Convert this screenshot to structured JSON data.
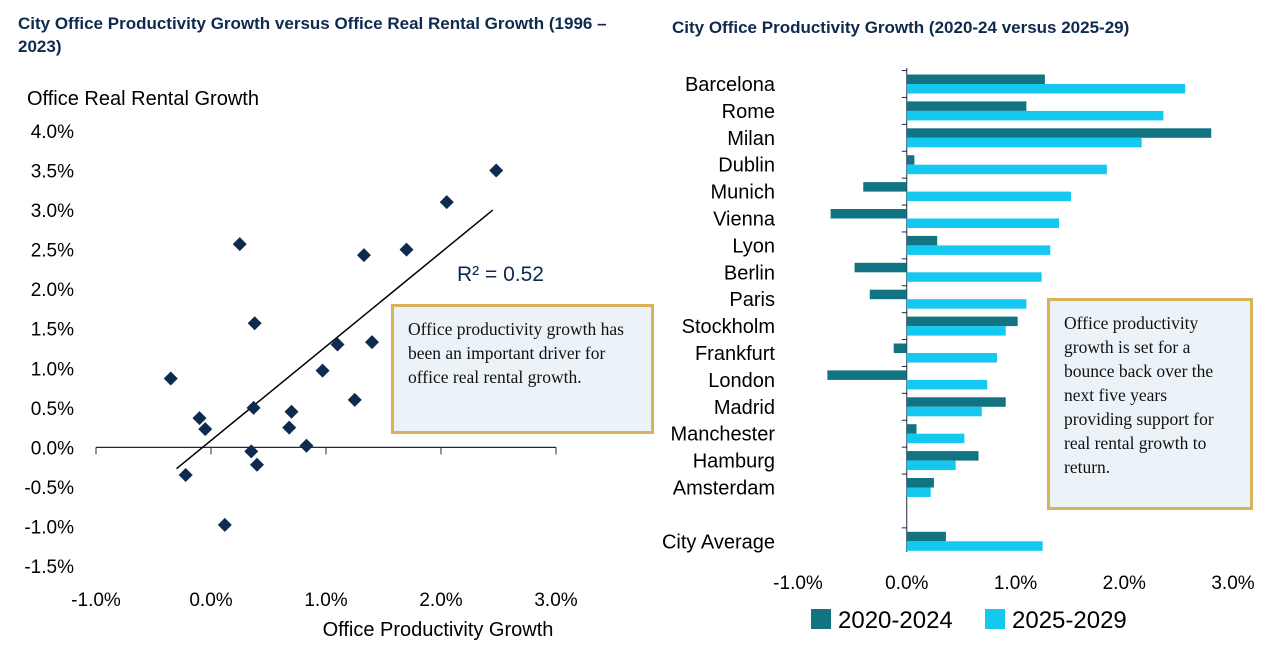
{
  "colors": {
    "title": "#0f2a4f",
    "marker": "#0f2a4f",
    "series_2020": "#127382",
    "series_2025": "#14c8f0",
    "callout_border": "#d9b35a",
    "callout_bg": "#ecf3f8"
  },
  "callouts": {
    "left": "Office productivity growth has been an important driver for office real rental growth.",
    "right": "Office productivity growth is set for a bounce back over the next five years providing support for real rental growth to return."
  },
  "chart_data": [
    {
      "type": "scatter",
      "title": "City Office Productivity Growth versus Office Real Rental Growth (1996 – 2023)",
      "xlabel": "Office Productivity Growth",
      "ylabel": "Office Real Rental Growth",
      "xlim": [
        -1.0,
        3.0
      ],
      "ylim": [
        -1.5,
        4.0
      ],
      "x_ticks": [
        "-1.0%",
        "0.0%",
        "1.0%",
        "2.0%",
        "3.0%"
      ],
      "y_ticks": [
        "4.0%",
        "3.5%",
        "3.0%",
        "2.5%",
        "2.0%",
        "1.5%",
        "1.0%",
        "0.5%",
        "0.0%",
        "-0.5%",
        "-1.0%",
        "-1.5%"
      ],
      "r_squared_label": "R² = 0.52",
      "trendline": {
        "x": [
          -0.3,
          2.45
        ],
        "y": [
          -0.27,
          3.0
        ]
      },
      "points": [
        {
          "x": -0.35,
          "y": 0.87
        },
        {
          "x": -0.1,
          "y": 0.37
        },
        {
          "x": -0.05,
          "y": 0.23
        },
        {
          "x": -0.22,
          "y": -0.35
        },
        {
          "x": 0.12,
          "y": -0.98
        },
        {
          "x": 0.25,
          "y": 2.57
        },
        {
          "x": 0.35,
          "y": -0.05
        },
        {
          "x": 0.37,
          "y": 0.5
        },
        {
          "x": 0.4,
          "y": -0.22
        },
        {
          "x": 0.38,
          "y": 1.57
        },
        {
          "x": 0.68,
          "y": 0.25
        },
        {
          "x": 0.7,
          "y": 0.45
        },
        {
          "x": 0.83,
          "y": 0.02
        },
        {
          "x": 0.97,
          "y": 0.97
        },
        {
          "x": 1.1,
          "y": 1.3
        },
        {
          "x": 1.25,
          "y": 0.6
        },
        {
          "x": 1.33,
          "y": 2.43
        },
        {
          "x": 1.4,
          "y": 1.33
        },
        {
          "x": 1.7,
          "y": 2.5
        },
        {
          "x": 2.05,
          "y": 3.1
        },
        {
          "x": 2.48,
          "y": 3.5
        }
      ]
    },
    {
      "type": "bar",
      "orientation": "horizontal",
      "title": "City Office Productivity Growth (2020-24 versus 2025-29)",
      "xlim": [
        -1.0,
        3.0
      ],
      "x_ticks": [
        "-1.0%",
        "0.0%",
        "1.0%",
        "2.0%",
        "3.0%"
      ],
      "legend_position": "bottom",
      "categories": [
        "Barcelona",
        "Rome",
        "Milan",
        "Dublin",
        "Munich",
        "Vienna",
        "Lyon",
        "Berlin",
        "Paris",
        "Stockholm",
        "Frankfurt",
        "London",
        "Madrid",
        "Manchester",
        "Hamburg",
        "Amsterdam",
        "City Average"
      ],
      "series": [
        {
          "name": "2020-2024",
          "values": [
            1.27,
            1.1,
            2.8,
            0.07,
            -0.4,
            -0.7,
            0.28,
            -0.48,
            -0.34,
            1.02,
            -0.12,
            -0.73,
            0.91,
            0.09,
            0.66,
            0.25,
            0.36
          ]
        },
        {
          "name": "2025-2029",
          "values": [
            2.56,
            2.36,
            2.16,
            1.84,
            1.51,
            1.4,
            1.32,
            1.24,
            1.1,
            0.91,
            0.83,
            0.74,
            0.69,
            0.53,
            0.45,
            0.22,
            1.25
          ]
        }
      ]
    }
  ]
}
